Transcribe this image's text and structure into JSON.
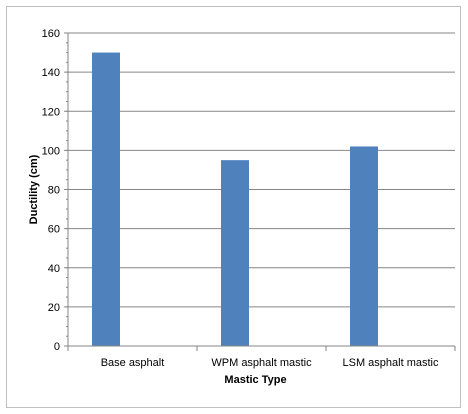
{
  "chart_data": {
    "type": "bar",
    "title": "",
    "xlabel": "Mastic Type",
    "ylabel": "Ductility (cm)",
    "categories": [
      "Base asphalt",
      "WPM asphalt mastic",
      "LSM asphalt mastic"
    ],
    "values": [
      150,
      95,
      102
    ],
    "ylim": [
      0,
      160
    ],
    "yticks": [
      "0",
      "20",
      "40",
      "60",
      "80",
      "100",
      "120",
      "140",
      "160"
    ],
    "grid": true,
    "bar_color": "#4f81bd",
    "gridline_color": "#868686"
  }
}
